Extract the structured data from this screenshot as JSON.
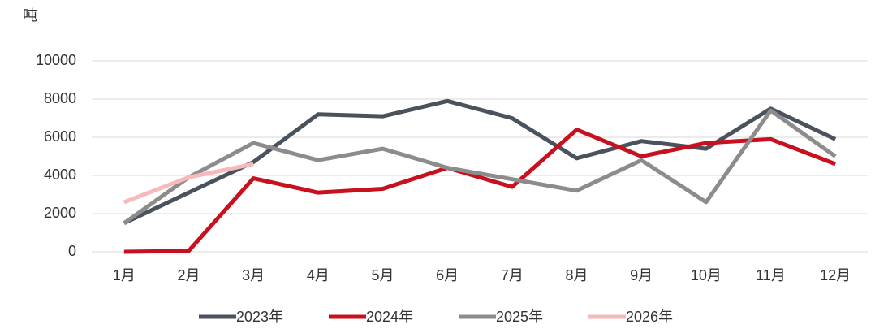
{
  "chart_data": {
    "type": "line",
    "y_axis_label": "吨",
    "categories": [
      "1月",
      "2月",
      "3月",
      "4月",
      "5月",
      "6月",
      "7月",
      "8月",
      "9月",
      "10月",
      "11月",
      "12月"
    ],
    "series": [
      {
        "name": "2023年",
        "color": "#4a525e",
        "values": [
          1500,
          3100,
          4700,
          7200,
          7100,
          7900,
          7000,
          4900,
          5800,
          5400,
          7500,
          5900
        ]
      },
      {
        "name": "2024年",
        "color": "#c8101e",
        "values": [
          0,
          50,
          3850,
          3100,
          3300,
          4400,
          3400,
          6400,
          5000,
          5700,
          5900,
          4600
        ]
      },
      {
        "name": "2025年",
        "color": "#8c8c8c",
        "values": [
          1500,
          3900,
          5700,
          4800,
          5400,
          4400,
          3800,
          3200,
          4800,
          2600,
          7400,
          5000
        ]
      },
      {
        "name": "2026年",
        "color": "#f6b9bc",
        "values": [
          2600,
          3900,
          4600,
          null,
          null,
          null,
          null,
          null,
          null,
          null,
          null,
          null
        ]
      }
    ],
    "ylim": [
      0,
      10000
    ],
    "yticks": [
      0,
      2000,
      4000,
      6000,
      8000,
      10000
    ],
    "grid": true,
    "legend": "bottom"
  }
}
